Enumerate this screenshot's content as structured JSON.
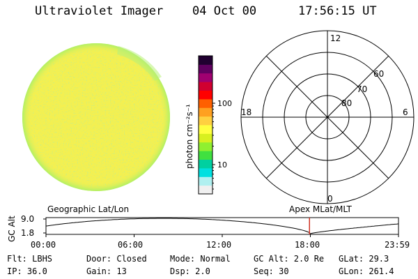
{
  "header": {
    "instrument": "Ultraviolet Imager",
    "date": "04 Oct 00",
    "time": "17:56:15 UT"
  },
  "colorbar": {
    "unit_label": "photon cm⁻²s⁻¹",
    "ticks": [
      {
        "label": "100",
        "value": 100
      },
      {
        "label": "10",
        "value": 10
      }
    ],
    "scale": "log",
    "colors": [
      "#f0f0f0",
      "#b0f0f0",
      "#00e0e0",
      "#00d0a0",
      "#40e040",
      "#90f030",
      "#d8f020",
      "#ffff40",
      "#ffd040",
      "#ffa020",
      "#ff6000",
      "#ff0000",
      "#d00030",
      "#a00070",
      "#600060",
      "#200030"
    ]
  },
  "earth_disk": {
    "main_color": "#f4f050",
    "rim_color": "#a8f068"
  },
  "polar_grid": {
    "mlt_labels": [
      "12",
      "18",
      "6",
      "0"
    ],
    "lat_labels": [
      "60",
      "70",
      "80"
    ]
  },
  "orbit_panel": {
    "y_axis_label": "GC Alt",
    "y_ticks": [
      "9.0",
      "1.8"
    ],
    "left_title": "Geographic Lat/Lon",
    "right_title": "Apex MLat/MLT",
    "x_ticks": [
      "00:00",
      "06:00",
      "12:00",
      "18:00",
      "23:59"
    ],
    "current_time_hours": 17.94,
    "marker_color": "#d03020"
  },
  "info": {
    "flt": "Flt: LBHS",
    "door": "Door: Closed",
    "mode": "Mode: Normal",
    "gc_alt": "GC Alt: 2.0 Re",
    "glat": "GLat:  29.3",
    "ip": "IP: 36.0",
    "gain": "Gain: 13",
    "dsp": "Dsp:   2.0",
    "seq": "Seq: 30",
    "glon": "GLon: 261.4"
  }
}
